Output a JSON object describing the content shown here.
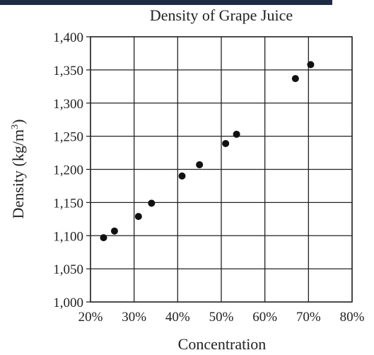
{
  "chart_data": {
    "type": "scatter",
    "title": "Density of Grape Juice",
    "xlabel": "Concentration",
    "ylabel_main": "Density (kg/m",
    "ylabel_sup": "3",
    "ylabel_close": ")",
    "xlim": [
      0.2,
      0.8
    ],
    "ylim": [
      1000,
      1400
    ],
    "x_ticks": [
      0.2,
      0.3,
      0.4,
      0.5,
      0.6,
      0.7,
      0.8
    ],
    "x_tick_labels": [
      "20%",
      "30%",
      "40%",
      "50%",
      "60%",
      "70%",
      "80%"
    ],
    "y_ticks": [
      1000,
      1050,
      1100,
      1150,
      1200,
      1250,
      1300,
      1350,
      1400
    ],
    "y_tick_labels": [
      "1,000",
      "1,050",
      "1,100",
      "1,150",
      "1,200",
      "1,250",
      "1,300",
      "1,350",
      "1,400"
    ],
    "grid": true,
    "points": [
      {
        "x": 0.23,
        "y": 1097
      },
      {
        "x": 0.255,
        "y": 1107
      },
      {
        "x": 0.31,
        "y": 1129
      },
      {
        "x": 0.34,
        "y": 1149
      },
      {
        "x": 0.41,
        "y": 1190
      },
      {
        "x": 0.45,
        "y": 1207
      },
      {
        "x": 0.51,
        "y": 1239
      },
      {
        "x": 0.535,
        "y": 1253
      },
      {
        "x": 0.67,
        "y": 1337
      },
      {
        "x": 0.705,
        "y": 1358
      }
    ],
    "colors": {
      "points": "#111111",
      "grid": "#222222",
      "band": "#1f2a44"
    }
  }
}
